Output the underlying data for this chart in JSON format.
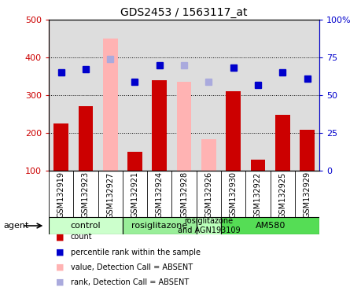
{
  "title": "GDS2453 / 1563117_at",
  "samples": [
    "GSM132919",
    "GSM132923",
    "GSM132927",
    "GSM132921",
    "GSM132924",
    "GSM132928",
    "GSM132926",
    "GSM132930",
    "GSM132922",
    "GSM132925",
    "GSM132929"
  ],
  "bar_values": [
    225,
    270,
    null,
    150,
    340,
    null,
    null,
    310,
    130,
    248,
    208
  ],
  "bar_absent_values": [
    null,
    null,
    450,
    null,
    null,
    335,
    183,
    null,
    null,
    null,
    null
  ],
  "rank_values": [
    65,
    67,
    null,
    59,
    70,
    null,
    null,
    68,
    57,
    65,
    61
  ],
  "rank_absent_values": [
    null,
    null,
    74,
    null,
    null,
    70,
    59,
    null,
    null,
    null,
    null
  ],
  "bar_color": "#cc0000",
  "bar_absent_color": "#ffb3b3",
  "rank_color": "#0000cc",
  "rank_absent_color": "#aaaadd",
  "ylim_left": [
    100,
    500
  ],
  "ylim_right": [
    0,
    100
  ],
  "yticks_left": [
    100,
    200,
    300,
    400,
    500
  ],
  "yticks_right": [
    0,
    25,
    50,
    75,
    100
  ],
  "ytick_labels_right": [
    "0",
    "25",
    "50",
    "75",
    "100%"
  ],
  "grid_lines": [
    200,
    300,
    400
  ],
  "groups": [
    {
      "label": "control",
      "start": 0,
      "end": 3,
      "color": "#ccffcc"
    },
    {
      "label": "rosiglitazone",
      "start": 3,
      "end": 6,
      "color": "#99ee99"
    },
    {
      "label": "rosiglitazone\nand AGN193109",
      "start": 6,
      "end": 7,
      "color": "#bbffbb"
    },
    {
      "label": "AM580",
      "start": 7,
      "end": 11,
      "color": "#55dd55"
    }
  ],
  "agent_label": "agent",
  "legend_items": [
    {
      "label": "count",
      "color": "#cc0000"
    },
    {
      "label": "percentile rank within the sample",
      "color": "#0000cc"
    },
    {
      "label": "value, Detection Call = ABSENT",
      "color": "#ffb3b3"
    },
    {
      "label": "rank, Detection Call = ABSENT",
      "color": "#aaaadd"
    }
  ],
  "bar_width": 0.6,
  "rank_marker_size": 6,
  "plot_bg_color": "#dddddd",
  "xticklabel_bg": "#cccccc"
}
